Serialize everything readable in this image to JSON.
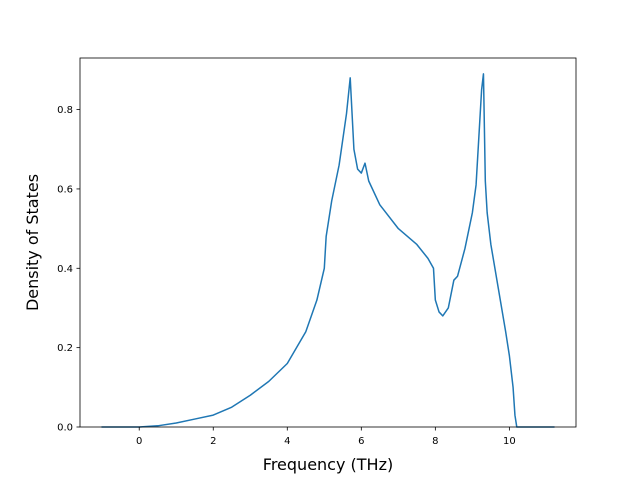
{
  "chart_data": {
    "type": "line",
    "title": "",
    "xlabel": "Frequency (THz)",
    "ylabel": "Density of States",
    "xlim": [
      -1.6,
      11.8
    ],
    "ylim": [
      0.0,
      0.93
    ],
    "xticks": [
      0,
      2,
      4,
      6,
      8,
      10
    ],
    "xtick_labels": [
      "0",
      "2",
      "4",
      "6",
      "8",
      "10"
    ],
    "yticks": [
      0.0,
      0.2,
      0.4,
      0.6,
      0.8
    ],
    "ytick_labels": [
      "0.0",
      "0.2",
      "0.4",
      "0.6",
      "0.8"
    ],
    "grid": false,
    "series": [
      {
        "name": "",
        "color": "#1f77b4",
        "x": [
          -1.0,
          -0.5,
          0.0,
          0.5,
          1.0,
          1.5,
          2.0,
          2.5,
          3.0,
          3.5,
          4.0,
          4.5,
          4.8,
          5.0,
          5.05,
          5.2,
          5.4,
          5.6,
          5.7,
          5.8,
          5.9,
          6.0,
          6.1,
          6.2,
          6.5,
          7.0,
          7.5,
          7.8,
          7.95,
          8.0,
          8.1,
          8.2,
          8.35,
          8.5,
          8.6,
          8.8,
          9.0,
          9.1,
          9.2,
          9.25,
          9.3,
          9.35,
          9.4,
          9.5,
          9.7,
          9.9,
          10.0,
          10.1,
          10.15,
          10.2,
          10.5,
          11.0,
          11.2
        ],
        "y": [
          0.0,
          0.0,
          0.0,
          0.003,
          0.01,
          0.02,
          0.03,
          0.05,
          0.08,
          0.115,
          0.16,
          0.24,
          0.32,
          0.4,
          0.48,
          0.57,
          0.66,
          0.79,
          0.88,
          0.7,
          0.65,
          0.64,
          0.665,
          0.62,
          0.56,
          0.5,
          0.46,
          0.425,
          0.4,
          0.32,
          0.29,
          0.28,
          0.3,
          0.37,
          0.38,
          0.45,
          0.54,
          0.61,
          0.77,
          0.85,
          0.89,
          0.62,
          0.54,
          0.46,
          0.35,
          0.24,
          0.18,
          0.1,
          0.03,
          0.0,
          0.0,
          0.0,
          0.0
        ]
      }
    ]
  }
}
